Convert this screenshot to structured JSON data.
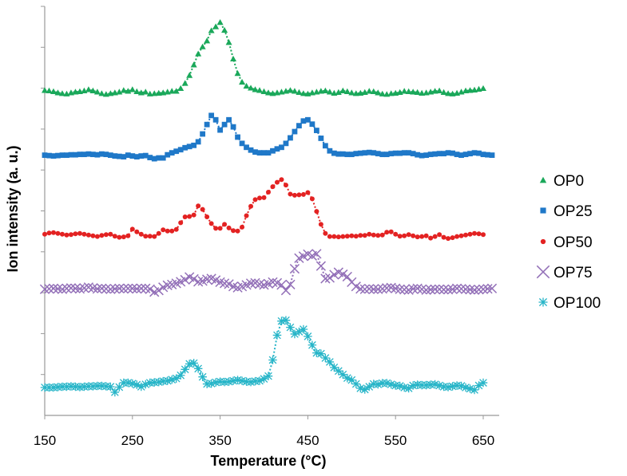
{
  "chart_data": {
    "type": "line",
    "title": "",
    "xlabel": "Temperature (°C)",
    "ylabel": "Ion intensity (a. u.)",
    "xlim": [
      150,
      660
    ],
    "xticks": [
      150,
      250,
      350,
      450,
      550,
      650
    ],
    "ylim": [
      0,
      100
    ],
    "ytick_count": 10,
    "y_tick_labels_shown": false,
    "grid": false,
    "legend_position": "right",
    "series": [
      {
        "name": "OP0",
        "marker": "triangle",
        "color": "#1aa85a",
        "x": [
          150,
          155,
          160,
          165,
          170,
          175,
          180,
          185,
          190,
          195,
          200,
          205,
          210,
          215,
          220,
          225,
          230,
          235,
          240,
          245,
          250,
          255,
          260,
          265,
          270,
          275,
          280,
          285,
          290,
          295,
          300,
          305,
          310,
          315,
          320,
          325,
          330,
          335,
          340,
          345,
          350,
          355,
          360,
          365,
          370,
          375,
          380,
          385,
          390,
          395,
          400,
          405,
          410,
          415,
          420,
          425,
          430,
          435,
          440,
          445,
          450,
          455,
          460,
          465,
          470,
          475,
          480,
          485,
          490,
          495,
          500,
          505,
          510,
          515,
          520,
          525,
          530,
          535,
          540,
          545,
          550,
          555,
          560,
          565,
          570,
          575,
          580,
          585,
          590,
          595,
          600,
          605,
          610,
          615,
          620,
          625,
          630,
          635,
          640,
          645,
          650
        ],
        "y": [
          82.7,
          82.6,
          82.4,
          82.1,
          81.9,
          81.8,
          82.1,
          82.3,
          82.4,
          82.6,
          82.9,
          82.6,
          82.3,
          81.9,
          81.7,
          81.9,
          82.1,
          82.3,
          82.7,
          82.5,
          82.9,
          82.4,
          82.1,
          82.3,
          81.8,
          81.9,
          82.0,
          82.1,
          82.3,
          82.5,
          82.5,
          83.2,
          84.5,
          86.5,
          89.2,
          92.0,
          93.8,
          95.3,
          97.9,
          98.9,
          100.0,
          98.0,
          94.9,
          90.7,
          87.0,
          84.8,
          83.8,
          83.3,
          82.9,
          82.7,
          82.4,
          82.1,
          81.9,
          82.1,
          82.3,
          82.5,
          82.7,
          82.5,
          82.2,
          81.9,
          81.8,
          82.1,
          82.3,
          82.5,
          82.6,
          82.3,
          82.0,
          82.2,
          82.6,
          82.4,
          82.1,
          81.9,
          82.0,
          82.2,
          82.5,
          82.4,
          82.1,
          81.8,
          81.7,
          81.9,
          82.0,
          82.2,
          82.5,
          82.4,
          82.3,
          82.2,
          82.0,
          82.1,
          82.3,
          82.5,
          82.6,
          82.2,
          81.9,
          81.8,
          82.0,
          82.3,
          82.6,
          82.7,
          82.8,
          83.0,
          83.2
        ]
      },
      {
        "name": "OP25",
        "marker": "square",
        "color": "#1f78c8",
        "x": [
          150,
          155,
          160,
          165,
          170,
          175,
          180,
          185,
          190,
          195,
          200,
          205,
          210,
          215,
          220,
          225,
          230,
          235,
          240,
          245,
          250,
          255,
          260,
          265,
          270,
          275,
          280,
          285,
          290,
          295,
          300,
          305,
          310,
          315,
          320,
          325,
          330,
          335,
          340,
          345,
          350,
          355,
          360,
          365,
          370,
          375,
          380,
          385,
          390,
          395,
          400,
          405,
          410,
          415,
          420,
          425,
          430,
          435,
          440,
          445,
          450,
          455,
          460,
          465,
          470,
          475,
          480,
          485,
          490,
          495,
          500,
          505,
          510,
          515,
          520,
          525,
          530,
          535,
          540,
          545,
          550,
          555,
          560,
          565,
          570,
          575,
          580,
          585,
          590,
          595,
          600,
          605,
          610,
          615,
          620,
          625,
          630,
          635,
          640,
          645,
          650,
          655,
          660
        ],
        "y": [
          66.2,
          66.1,
          66.0,
          66.1,
          66.2,
          66.2,
          66.3,
          66.3,
          66.4,
          66.4,
          66.5,
          66.4,
          66.3,
          66.5,
          66.4,
          66.2,
          66.0,
          65.9,
          65.8,
          66.2,
          66.0,
          65.8,
          66.0,
          66.1,
          65.6,
          65.3,
          65.5,
          65.5,
          66.3,
          66.8,
          67.2,
          67.6,
          68.1,
          68.4,
          68.7,
          69.6,
          71.6,
          74.0,
          76.3,
          75.2,
          72.6,
          74.0,
          75.2,
          73.4,
          70.8,
          69.2,
          68.2,
          67.5,
          67.0,
          66.8,
          66.8,
          66.8,
          67.3,
          67.8,
          68.2,
          69.2,
          70.6,
          72.2,
          73.7,
          74.9,
          75.2,
          74.1,
          72.5,
          70.5,
          68.6,
          67.3,
          66.7,
          66.5,
          66.5,
          66.4,
          66.4,
          66.6,
          66.7,
          66.8,
          66.9,
          66.8,
          66.6,
          66.4,
          66.4,
          66.6,
          66.7,
          66.7,
          66.8,
          66.8,
          66.6,
          66.3,
          66.1,
          66.2,
          66.4,
          66.5,
          66.6,
          66.6,
          66.8,
          66.7,
          66.4,
          66.2,
          66.4,
          66.6,
          66.8,
          66.7,
          66.4,
          66.3,
          66.2
        ]
      },
      {
        "name": "OP50",
        "marker": "circle",
        "color": "#e32222",
        "x": [
          150,
          155,
          160,
          165,
          170,
          175,
          180,
          185,
          190,
          195,
          200,
          205,
          210,
          215,
          220,
          225,
          230,
          235,
          240,
          245,
          250,
          255,
          260,
          265,
          270,
          275,
          280,
          285,
          290,
          295,
          300,
          305,
          310,
          315,
          320,
          325,
          330,
          335,
          340,
          345,
          350,
          355,
          360,
          365,
          370,
          375,
          380,
          385,
          390,
          395,
          400,
          405,
          410,
          415,
          420,
          425,
          430,
          435,
          440,
          445,
          450,
          455,
          460,
          465,
          470,
          475,
          480,
          485,
          490,
          495,
          500,
          505,
          510,
          515,
          520,
          525,
          530,
          535,
          540,
          545,
          550,
          555,
          560,
          565,
          570,
          575,
          580,
          585,
          590,
          595,
          600,
          605,
          610,
          615,
          620,
          625,
          630,
          635,
          640,
          645,
          650
        ],
        "y": [
          46.1,
          46.4,
          46.5,
          46.3,
          46.1,
          45.9,
          46.0,
          46.2,
          46.3,
          46.1,
          45.9,
          45.7,
          45.5,
          45.8,
          46.0,
          46.1,
          45.6,
          45.3,
          45.4,
          45.7,
          47.4,
          46.7,
          46.1,
          45.6,
          45.6,
          45.5,
          46.3,
          47.2,
          46.9,
          46.9,
          47.3,
          49.0,
          50.5,
          50.6,
          51.0,
          53.3,
          52.4,
          50.5,
          48.8,
          47.6,
          47.6,
          48.6,
          47.7,
          47.0,
          46.9,
          47.9,
          50.8,
          53.2,
          54.9,
          55.3,
          55.4,
          56.8,
          58.2,
          59.3,
          60.0,
          58.6,
          56.3,
          56.0,
          56.1,
          56.2,
          56.7,
          55.1,
          51.9,
          48.6,
          46.3,
          45.5,
          45.5,
          45.4,
          45.5,
          45.6,
          45.7,
          45.6,
          45.8,
          45.8,
          46.1,
          45.9,
          45.8,
          45.9,
          46.6,
          46.7,
          46.1,
          45.6,
          45.7,
          46.0,
          45.7,
          45.4,
          45.5,
          45.7,
          45.1,
          45.5,
          46.0,
          45.3,
          45.0,
          45.2,
          45.5,
          45.7,
          45.9,
          46.1,
          46.3,
          46.2,
          46.0
        ]
      },
      {
        "name": "OP75",
        "marker": "x",
        "color": "#9370b8",
        "x": [
          150,
          155,
          160,
          165,
          170,
          175,
          180,
          185,
          190,
          195,
          200,
          205,
          210,
          215,
          220,
          225,
          230,
          235,
          240,
          245,
          250,
          255,
          260,
          265,
          270,
          275,
          280,
          285,
          290,
          295,
          300,
          305,
          310,
          315,
          320,
          325,
          330,
          335,
          340,
          345,
          350,
          355,
          360,
          365,
          370,
          375,
          380,
          385,
          390,
          395,
          400,
          405,
          410,
          415,
          420,
          425,
          430,
          435,
          440,
          445,
          450,
          455,
          460,
          465,
          470,
          475,
          480,
          485,
          490,
          495,
          500,
          505,
          510,
          515,
          520,
          525,
          530,
          535,
          540,
          545,
          550,
          555,
          560,
          565,
          570,
          575,
          580,
          585,
          590,
          595,
          600,
          605,
          610,
          615,
          620,
          625,
          630,
          635,
          640,
          645,
          650,
          655,
          660
        ],
        "y": [
          32.1,
          32.2,
          32.3,
          32.2,
          32.1,
          32.3,
          32.4,
          32.3,
          32.2,
          32.4,
          32.6,
          32.4,
          32.2,
          32.3,
          32.2,
          32.1,
          32.2,
          32.3,
          32.2,
          32.3,
          32.3,
          32.2,
          32.3,
          32.3,
          32.1,
          31.4,
          31.8,
          32.6,
          33.1,
          33.3,
          33.6,
          34.0,
          34.5,
          35.2,
          34.7,
          34.0,
          34.2,
          34.6,
          34.8,
          34.4,
          33.9,
          33.6,
          33.4,
          32.8,
          32.5,
          32.8,
          33.2,
          33.6,
          33.7,
          33.4,
          33.2,
          33.5,
          33.9,
          33.7,
          33.2,
          31.8,
          33.3,
          37.3,
          40.0,
          40.5,
          41.0,
          40.6,
          41.1,
          38.0,
          34.8,
          35.0,
          35.8,
          36.4,
          35.9,
          35.3,
          33.9,
          32.8,
          32.2,
          32.1,
          32.2,
          32.1,
          32.1,
          32.2,
          32.4,
          32.5,
          32.3,
          32.1,
          32.0,
          31.9,
          32.2,
          32.3,
          32.1,
          31.9,
          32.0,
          32.1,
          32.1,
          32.0,
          32.0,
          32.1,
          32.3,
          32.2,
          32.1,
          32.0,
          31.9,
          32.0,
          32.1,
          32.2,
          32.3
        ]
      },
      {
        "name": "OP100",
        "marker": "asterisk",
        "color": "#27b5c8",
        "x": [
          150,
          155,
          160,
          165,
          170,
          175,
          180,
          185,
          190,
          195,
          200,
          205,
          210,
          215,
          220,
          225,
          230,
          235,
          240,
          245,
          250,
          255,
          260,
          265,
          270,
          275,
          280,
          285,
          290,
          295,
          300,
          305,
          310,
          315,
          320,
          325,
          330,
          335,
          340,
          345,
          350,
          355,
          360,
          365,
          370,
          375,
          380,
          385,
          390,
          395,
          400,
          405,
          410,
          415,
          420,
          425,
          430,
          435,
          440,
          445,
          450,
          455,
          460,
          465,
          470,
          475,
          480,
          485,
          490,
          495,
          500,
          505,
          510,
          515,
          520,
          525,
          530,
          535,
          540,
          545,
          550,
          555,
          560,
          565,
          570,
          575,
          580,
          585,
          590,
          595,
          600,
          605,
          610,
          615,
          620,
          625,
          630,
          635,
          640,
          645,
          650
        ],
        "y": [
          7.1,
          7.1,
          7.1,
          7.2,
          7.3,
          7.3,
          7.4,
          7.3,
          7.2,
          7.3,
          7.4,
          7.4,
          7.5,
          7.5,
          7.4,
          7.3,
          5.9,
          7.2,
          8.3,
          8.3,
          8.1,
          7.8,
          7.3,
          7.9,
          8.3,
          8.4,
          8.5,
          8.7,
          8.8,
          9.1,
          9.4,
          10.2,
          11.7,
          13.1,
          13.3,
          11.9,
          9.8,
          8.0,
          8.1,
          8.4,
          8.6,
          8.5,
          8.6,
          8.8,
          9.0,
          8.8,
          8.6,
          8.5,
          8.7,
          8.8,
          9.3,
          10.0,
          14.1,
          20.4,
          24.0,
          24.2,
          22.4,
          20.7,
          21.3,
          21.9,
          20.1,
          17.9,
          15.9,
          15.7,
          14.6,
          13.6,
          12.2,
          11.3,
          10.4,
          9.5,
          9.0,
          8.0,
          6.9,
          6.6,
          7.3,
          8.0,
          7.9,
          8.2,
          8.2,
          7.9,
          7.6,
          7.5,
          7.1,
          6.9,
          7.6,
          7.8,
          7.7,
          7.7,
          7.8,
          7.9,
          7.6,
          7.3,
          7.2,
          7.4,
          7.6,
          7.5,
          7.1,
          6.8,
          6.5,
          7.6,
          8.3
        ]
      }
    ]
  }
}
